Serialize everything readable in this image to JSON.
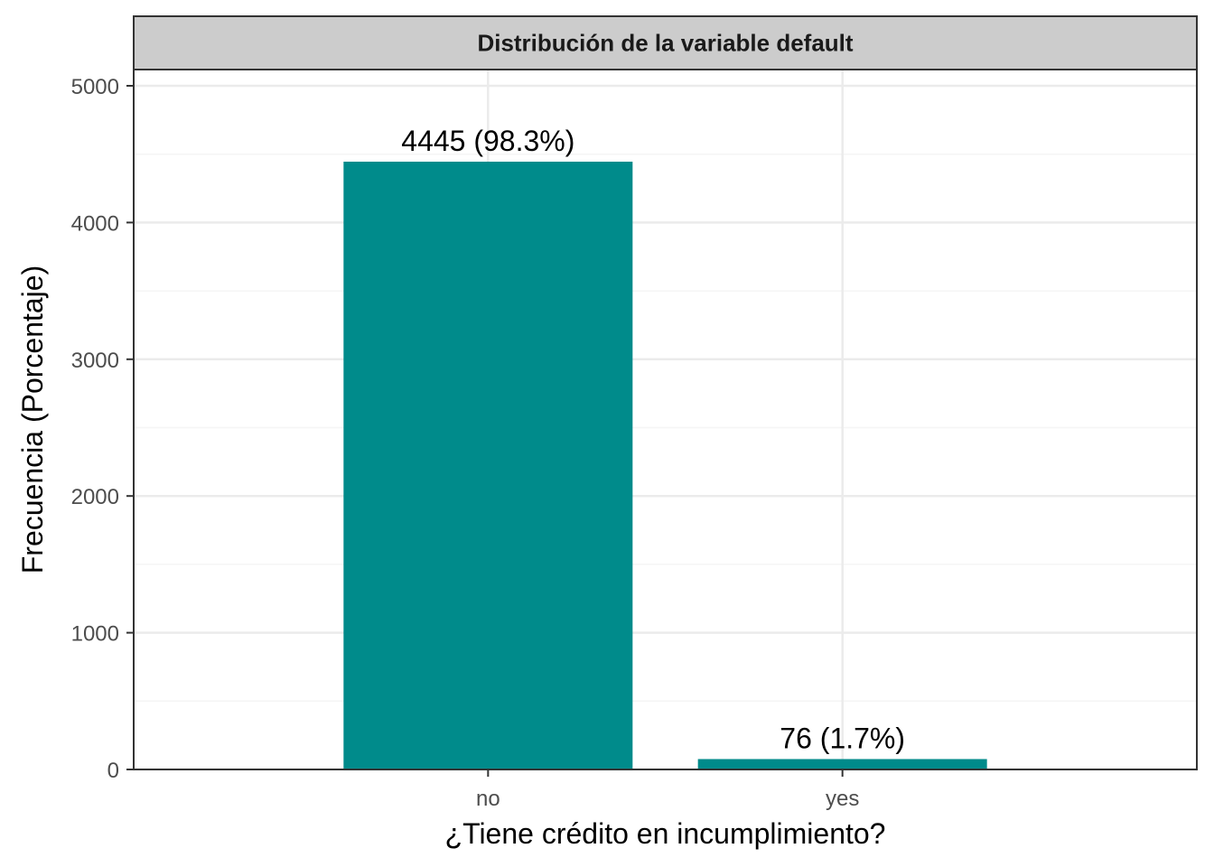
{
  "chart_data": {
    "type": "bar",
    "title": "Distribución de la variable default",
    "xlabel": "¿Tiene crédito en incumplimiento?",
    "ylabel": "Frecuencia (Porcentaje)",
    "categories": [
      "no",
      "yes"
    ],
    "values": [
      4445,
      76
    ],
    "data_labels": [
      "4445 (98.3%)",
      "76 (1.7%)"
    ],
    "ylim": [
      0,
      5000
    ],
    "yticks": [
      0,
      1000,
      2000,
      3000,
      4000,
      5000
    ],
    "ytick_labels": [
      "0",
      "1000",
      "2000",
      "3000",
      "4000",
      "5000"
    ],
    "grid": true,
    "legend": "none",
    "colors": {
      "bar": "#008B8B",
      "strip": "#CCCCCC",
      "grid_major": "#EBEBEB",
      "grid_minor": "#F5F5F5",
      "panel_border": "#333333"
    }
  }
}
